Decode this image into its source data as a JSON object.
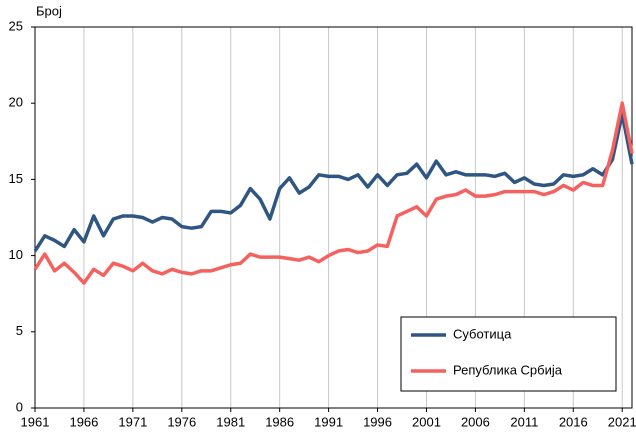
{
  "chart_data": {
    "type": "line",
    "ylabel": "Број",
    "x": [
      1961,
      1962,
      1963,
      1964,
      1965,
      1966,
      1967,
      1968,
      1969,
      1970,
      1971,
      1972,
      1973,
      1974,
      1975,
      1976,
      1977,
      1978,
      1979,
      1980,
      1981,
      1982,
      1983,
      1984,
      1985,
      1986,
      1987,
      1988,
      1989,
      1990,
      1991,
      1992,
      1993,
      1994,
      1995,
      1996,
      1997,
      1998,
      1999,
      2000,
      2001,
      2002,
      2003,
      2004,
      2005,
      2006,
      2007,
      2008,
      2009,
      2010,
      2011,
      2012,
      2013,
      2014,
      2015,
      2016,
      2017,
      2018,
      2019,
      2020,
      2021,
      2022
    ],
    "series": [
      {
        "name": "Суботица",
        "color": "#2f5682",
        "values": [
          10.3,
          11.3,
          11.0,
          10.6,
          11.7,
          10.9,
          12.6,
          11.3,
          12.4,
          12.6,
          12.6,
          12.5,
          12.2,
          12.5,
          12.4,
          11.9,
          11.8,
          11.9,
          12.9,
          12.9,
          12.8,
          13.3,
          14.4,
          13.7,
          12.4,
          14.4,
          15.1,
          14.1,
          14.5,
          15.3,
          15.2,
          15.2,
          15.0,
          15.3,
          14.5,
          15.3,
          14.6,
          15.3,
          15.4,
          16.0,
          15.1,
          16.2,
          15.3,
          15.5,
          15.3,
          15.3,
          15.3,
          15.2,
          15.4,
          14.8,
          15.1,
          14.7,
          14.6,
          14.7,
          15.3,
          15.2,
          15.3,
          15.7,
          15.3,
          16.3,
          19.3,
          16.0
        ]
      },
      {
        "name": "Република Србија",
        "color": "#f4615f",
        "values": [
          9.1,
          10.1,
          9.0,
          9.5,
          8.9,
          8.2,
          9.1,
          8.7,
          9.5,
          9.3,
          9.0,
          9.5,
          9.0,
          8.8,
          9.1,
          8.9,
          8.8,
          9.0,
          9.0,
          9.2,
          9.4,
          9.5,
          10.1,
          9.9,
          9.9,
          9.9,
          9.8,
          9.7,
          9.9,
          9.6,
          10.0,
          10.3,
          10.4,
          10.2,
          10.3,
          10.7,
          10.6,
          12.6,
          12.9,
          13.2,
          12.6,
          13.7,
          13.9,
          14.0,
          14.3,
          13.9,
          13.9,
          14.0,
          14.2,
          14.2,
          14.2,
          14.2,
          14.0,
          14.2,
          14.6,
          14.3,
          14.8,
          14.6,
          14.6,
          16.9,
          20.0,
          16.7
        ]
      }
    ],
    "xlim": [
      1961,
      2022
    ],
    "xticks": [
      1961,
      1966,
      1971,
      1976,
      1981,
      1986,
      1991,
      1996,
      2001,
      2006,
      2011,
      2016,
      2021
    ],
    "ylim": [
      0,
      25
    ],
    "yticks": [
      0,
      5,
      10,
      15,
      20,
      25
    ],
    "grid": "x",
    "legend": "lower right"
  }
}
